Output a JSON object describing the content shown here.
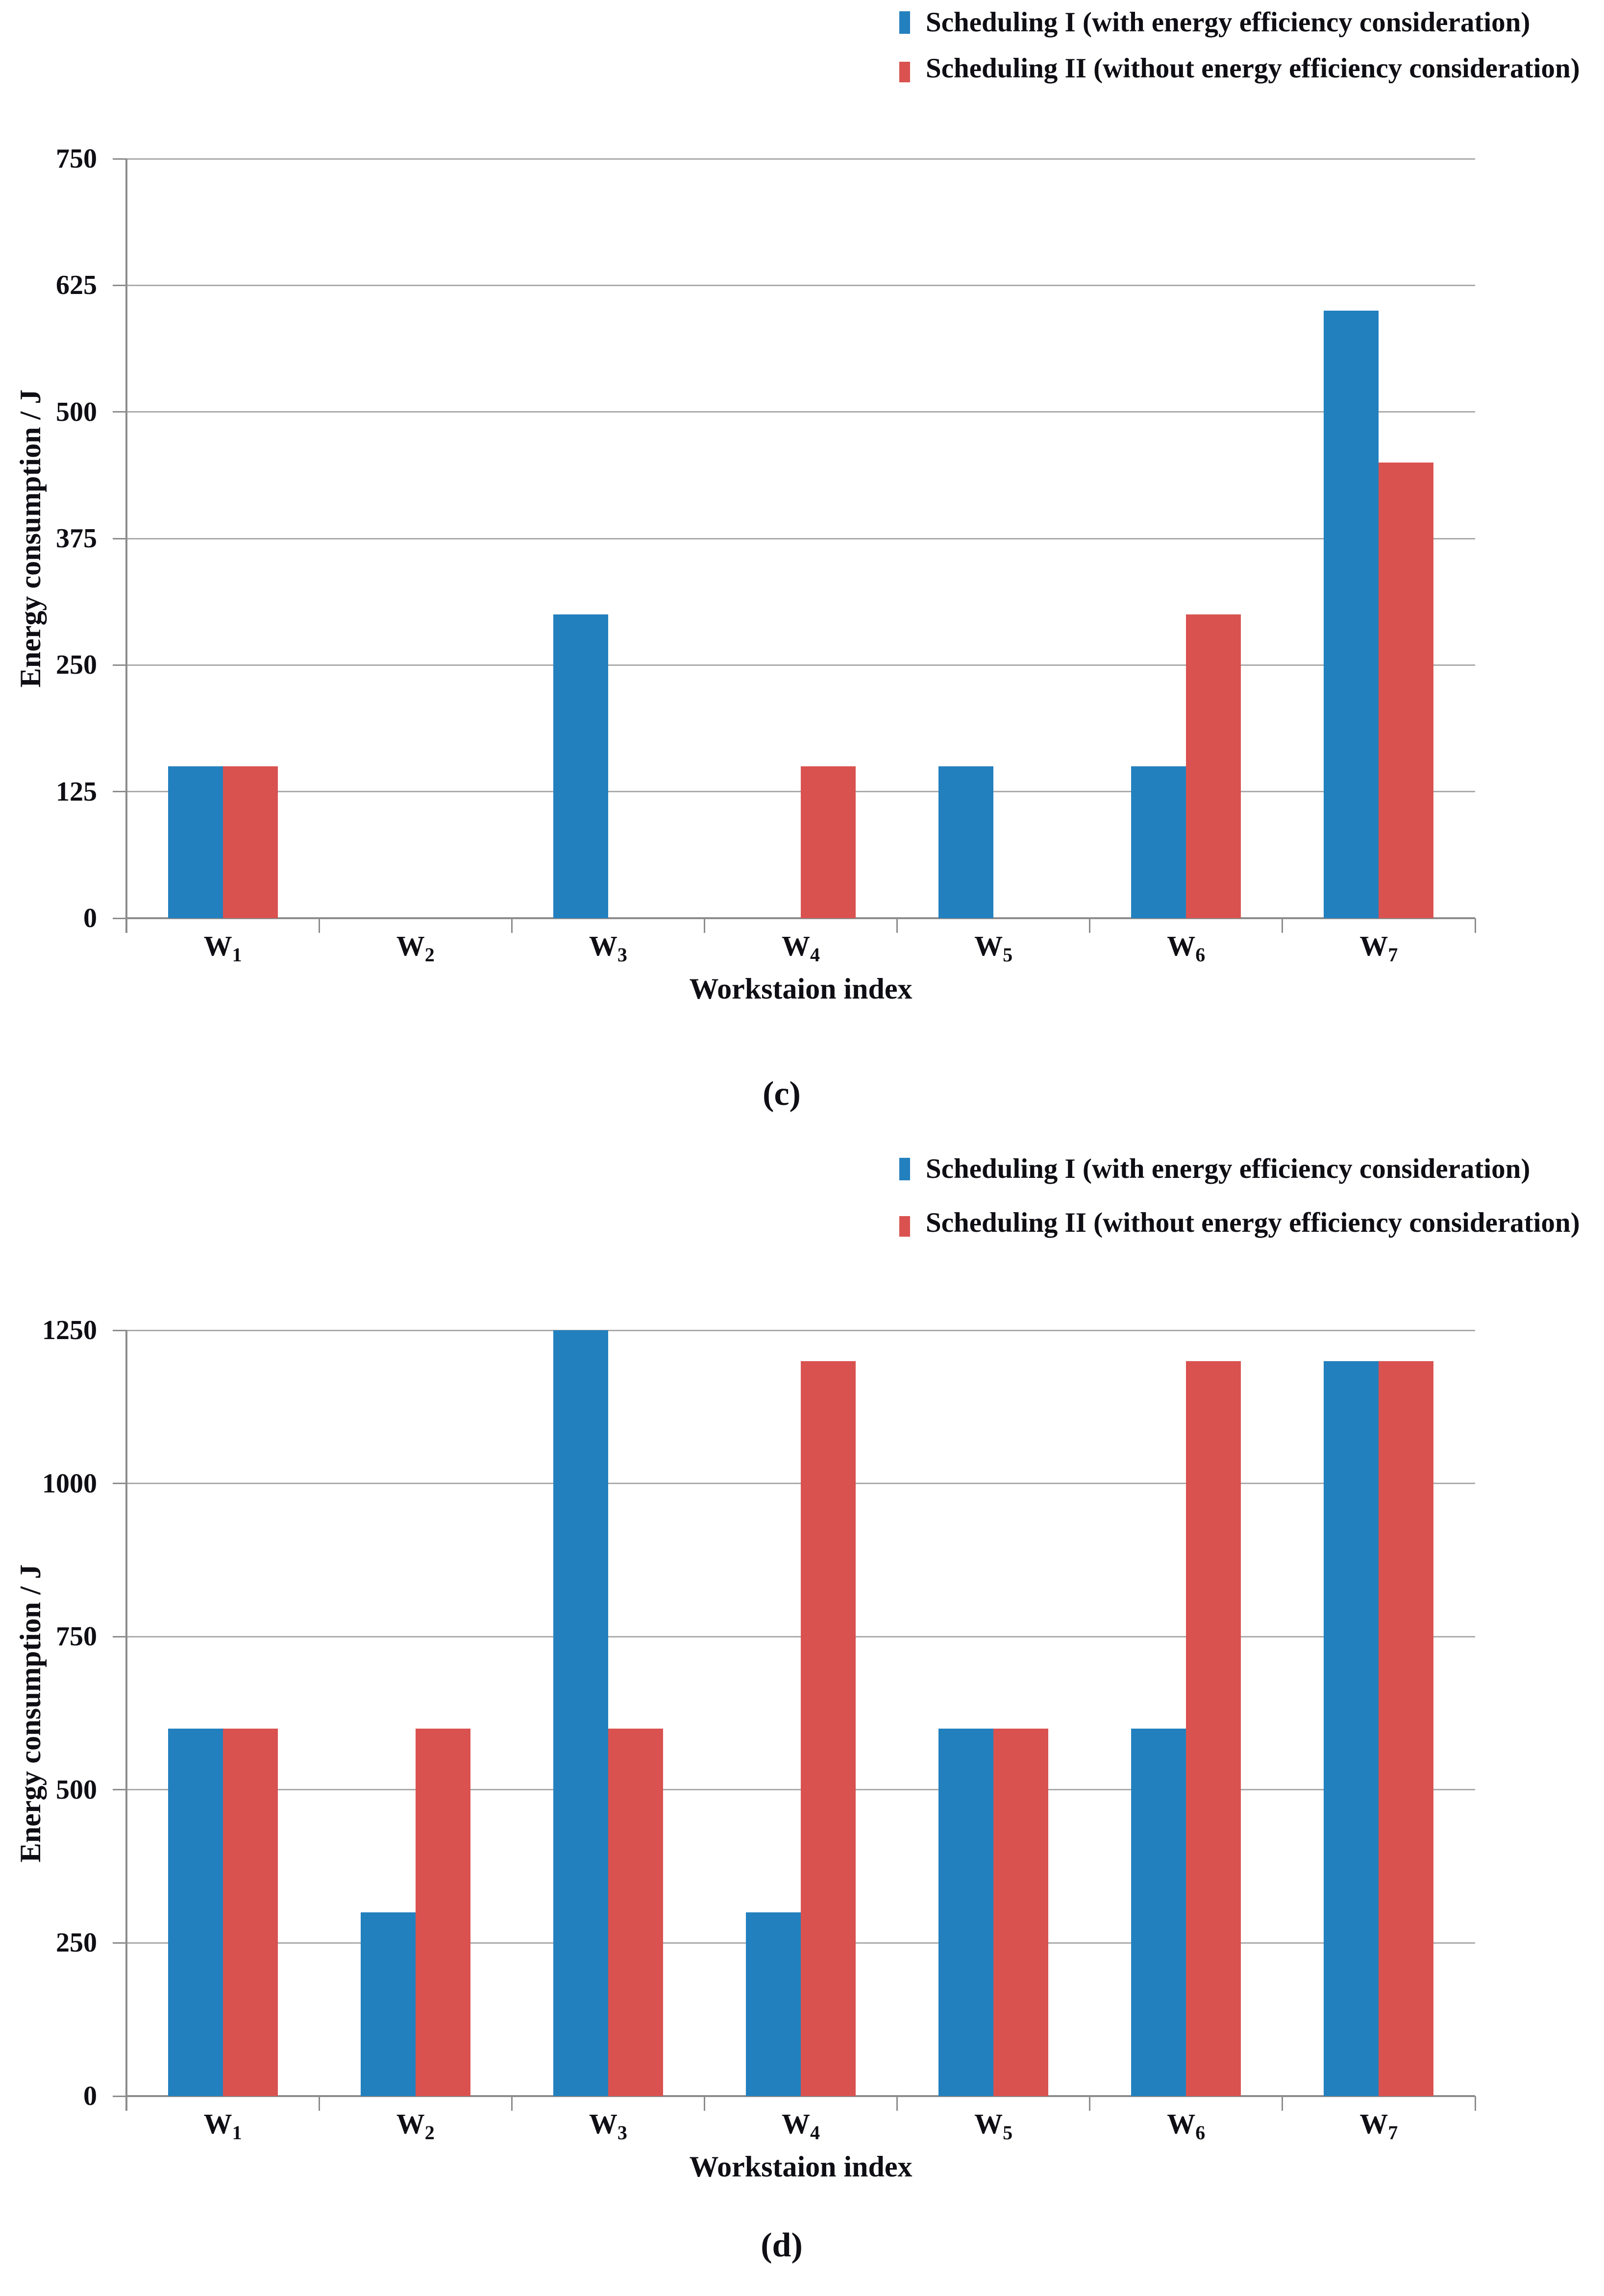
{
  "figure": {
    "background": "#ffffff"
  },
  "colors": {
    "series1": "#2380be",
    "series2": "#d95250",
    "gridline": "#ababab",
    "axis": "#8c8c8c",
    "text": "#0e0e14"
  },
  "chart_data": [
    {
      "type": "bar",
      "caption": "(c)",
      "xlabel": "Workstaion index",
      "ylabel": "Energy consumption / J",
      "ylim": [
        0,
        750
      ],
      "yticks": [
        0,
        125,
        250,
        375,
        500,
        625,
        750
      ],
      "grid": true,
      "legend_position": "top-right",
      "categories": [
        "W1",
        "W2",
        "W3",
        "W4",
        "W5",
        "W6",
        "W7"
      ],
      "series": [
        {
          "name": "Scheduling I (with energy efficiency consideration)",
          "color_key": "series1",
          "values": [
            150,
            0,
            300,
            0,
            150,
            150,
            600
          ]
        },
        {
          "name": "Scheduling II (without energy efficiency consideration)",
          "color_key": "series2",
          "values": [
            150,
            0,
            0,
            150,
            0,
            300,
            450
          ]
        }
      ]
    },
    {
      "type": "bar",
      "caption": "(d)",
      "xlabel": "Workstaion index",
      "ylabel": "Energy consumption / J",
      "ylim": [
        0,
        1250
      ],
      "yticks": [
        0,
        250,
        500,
        750,
        1000,
        1250
      ],
      "grid": true,
      "legend_position": "top-right",
      "categories": [
        "W1",
        "W2",
        "W3",
        "W4",
        "W5",
        "W6",
        "W7"
      ],
      "series": [
        {
          "name": "Scheduling I (with energy efficiency consideration)",
          "color_key": "series1",
          "values": [
            600,
            300,
            1250,
            300,
            600,
            600,
            1200
          ]
        },
        {
          "name": "Scheduling II (without energy efficiency consideration)",
          "color_key": "series2",
          "values": [
            600,
            600,
            600,
            1200,
            600,
            1200,
            1200
          ]
        }
      ]
    }
  ]
}
